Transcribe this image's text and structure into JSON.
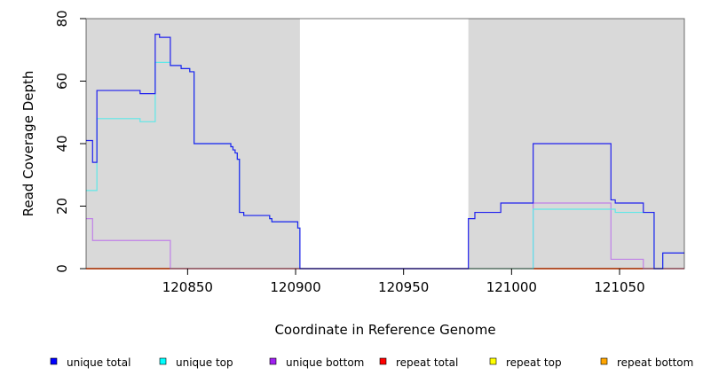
{
  "chart_data": {
    "type": "line",
    "title": "",
    "xlabel": "Coordinate in Reference Genome",
    "ylabel": "Read Coverage Depth",
    "xlim": [
      120803,
      121080
    ],
    "ylim": [
      0,
      80
    ],
    "x_ticks": [
      120850,
      120900,
      120950,
      121000,
      121050
    ],
    "x_tick_labels": [
      "120850",
      "120900",
      "120950",
      "121000",
      "121050"
    ],
    "y_ticks": [
      0,
      20,
      40,
      60,
      80
    ],
    "y_tick_labels": [
      "0",
      "20",
      "40",
      "60",
      "80"
    ],
    "grid": false,
    "background_color": "#d9d9d9",
    "shaded_regions": [
      {
        "x_start": 120803,
        "x_end": 120902
      },
      {
        "x_start": 120980,
        "x_end": 121080
      }
    ],
    "legend_position": "bottom",
    "legend": [
      {
        "label": "unique total",
        "color": "#0000ff"
      },
      {
        "label": "unique top",
        "color": "#00ffff"
      },
      {
        "label": "unique bottom",
        "color": "#a020f0"
      },
      {
        "label": "repeat total",
        "color": "#ff0000"
      },
      {
        "label": "repeat top",
        "color": "#ffff00"
      },
      {
        "label": "repeat bottom",
        "color": "#ffa500"
      }
    ],
    "series": [
      {
        "name": "unique total",
        "color": "#2020ee",
        "points": [
          [
            120803,
            41
          ],
          [
            120806,
            41
          ],
          [
            120806,
            34
          ],
          [
            120808,
            34
          ],
          [
            120808,
            57
          ],
          [
            120828,
            57
          ],
          [
            120828,
            56
          ],
          [
            120835,
            56
          ],
          [
            120835,
            75
          ],
          [
            120837,
            75
          ],
          [
            120837,
            74
          ],
          [
            120842,
            74
          ],
          [
            120842,
            65
          ],
          [
            120847,
            65
          ],
          [
            120847,
            64
          ],
          [
            120851,
            64
          ],
          [
            120851,
            63
          ],
          [
            120853,
            63
          ],
          [
            120853,
            40
          ],
          [
            120870,
            40
          ],
          [
            120870,
            39
          ],
          [
            120871,
            39
          ],
          [
            120871,
            38
          ],
          [
            120872,
            38
          ],
          [
            120872,
            37
          ],
          [
            120873,
            37
          ],
          [
            120873,
            35
          ],
          [
            120874,
            35
          ],
          [
            120874,
            18
          ],
          [
            120876,
            18
          ],
          [
            120876,
            17
          ],
          [
            120888,
            17
          ],
          [
            120888,
            16
          ],
          [
            120889,
            16
          ],
          [
            120889,
            15
          ],
          [
            120901,
            15
          ],
          [
            120901,
            13
          ],
          [
            120902,
            13
          ],
          [
            120902,
            0
          ],
          [
            120980,
            0
          ],
          [
            120980,
            16
          ],
          [
            120983,
            16
          ],
          [
            120983,
            18
          ],
          [
            120995,
            18
          ],
          [
            120995,
            21
          ],
          [
            121010,
            21
          ],
          [
            121010,
            40
          ],
          [
            121046,
            40
          ],
          [
            121046,
            22
          ],
          [
            121048,
            22
          ],
          [
            121048,
            21
          ],
          [
            121061,
            21
          ],
          [
            121061,
            18
          ],
          [
            121066,
            18
          ],
          [
            121066,
            0
          ],
          [
            121070,
            0
          ],
          [
            121070,
            5
          ],
          [
            121080,
            5
          ]
        ]
      },
      {
        "name": "unique top",
        "color": "#5fe8e8",
        "points": [
          [
            120803,
            25
          ],
          [
            120808,
            25
          ],
          [
            120808,
            48
          ],
          [
            120828,
            48
          ],
          [
            120828,
            47
          ],
          [
            120835,
            47
          ],
          [
            120835,
            66
          ],
          [
            120842,
            66
          ],
          [
            120842,
            65
          ],
          [
            120847,
            65
          ],
          [
            120847,
            64
          ],
          [
            120851,
            64
          ],
          [
            120851,
            63
          ],
          [
            120853,
            63
          ],
          [
            120853,
            40
          ],
          [
            120870,
            40
          ],
          [
            120870,
            39
          ],
          [
            120871,
            39
          ],
          [
            120871,
            38
          ],
          [
            120872,
            38
          ],
          [
            120872,
            37
          ],
          [
            120873,
            37
          ],
          [
            120873,
            35
          ],
          [
            120874,
            35
          ],
          [
            120874,
            18
          ],
          [
            120876,
            18
          ],
          [
            120876,
            17
          ],
          [
            120888,
            17
          ],
          [
            120888,
            16
          ],
          [
            120889,
            16
          ],
          [
            120889,
            15
          ],
          [
            120901,
            15
          ],
          [
            120901,
            13
          ],
          [
            120902,
            13
          ],
          [
            120902,
            0
          ],
          [
            121010,
            0
          ],
          [
            121010,
            19
          ],
          [
            121048,
            19
          ],
          [
            121048,
            18
          ],
          [
            121061,
            18
          ],
          [
            121066,
            18
          ],
          [
            121066,
            0
          ],
          [
            121070,
            0
          ],
          [
            121070,
            5
          ],
          [
            121080,
            5
          ]
        ]
      },
      {
        "name": "unique bottom",
        "color": "#c080e8",
        "points": [
          [
            120803,
            16
          ],
          [
            120806,
            16
          ],
          [
            120806,
            9
          ],
          [
            120842,
            9
          ],
          [
            120842,
            0
          ],
          [
            121010,
            0
          ],
          [
            121010,
            21
          ],
          [
            121046,
            21
          ],
          [
            121046,
            3
          ],
          [
            121061,
            3
          ],
          [
            121061,
            0
          ],
          [
            121080,
            0
          ]
        ]
      },
      {
        "name": "repeat total",
        "color": "#ff0000",
        "points": [
          [
            120803,
            0
          ],
          [
            121080,
            0
          ]
        ]
      },
      {
        "name": "repeat top",
        "color": "#ffff00",
        "points": [
          [
            120803,
            0
          ],
          [
            121080,
            0
          ]
        ]
      },
      {
        "name": "repeat bottom",
        "color": "#ffa500",
        "points": [
          [
            120803,
            0
          ],
          [
            121080,
            0
          ]
        ]
      }
    ]
  }
}
